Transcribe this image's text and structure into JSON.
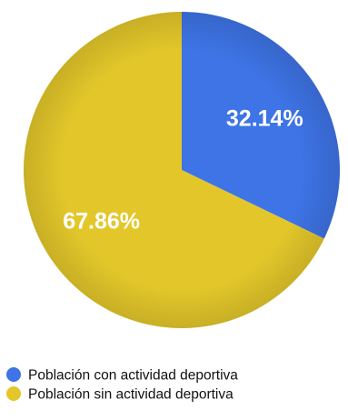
{
  "chart_data": {
    "type": "pie",
    "slices": [
      {
        "label": "Población con actividad deportiva",
        "value": 32.14,
        "value_label": "32.14%",
        "color": "#3E74E6"
      },
      {
        "label": "Población sin actividad deportiva",
        "value": 67.86,
        "value_label": "67.86%",
        "color": "#E3C72A"
      }
    ],
    "start_angle": "12 o'clock",
    "direction": "clockwise",
    "legend_position": "bottom-left"
  }
}
